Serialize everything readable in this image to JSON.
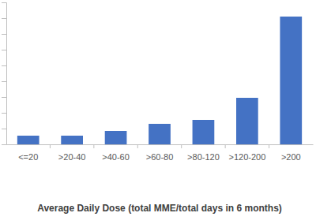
{
  "chart_data": {
    "type": "bar",
    "x_label": "Average Daily Dose (total MME/total days in 6 months)",
    "categories": [
      "<=20",
      ">20-40",
      ">40-60",
      ">60-80",
      ">80-120",
      ">120-200",
      ">200"
    ],
    "values": [
      0.55,
      0.55,
      0.85,
      1.3,
      1.55,
      2.95,
      8.1
    ],
    "color": "#4472c4",
    "ylim": [
      0,
      9
    ],
    "yticks": [
      0,
      1,
      2,
      3,
      4,
      5,
      6,
      7,
      8,
      9
    ],
    "grid": false,
    "tick_labels": "x"
  }
}
